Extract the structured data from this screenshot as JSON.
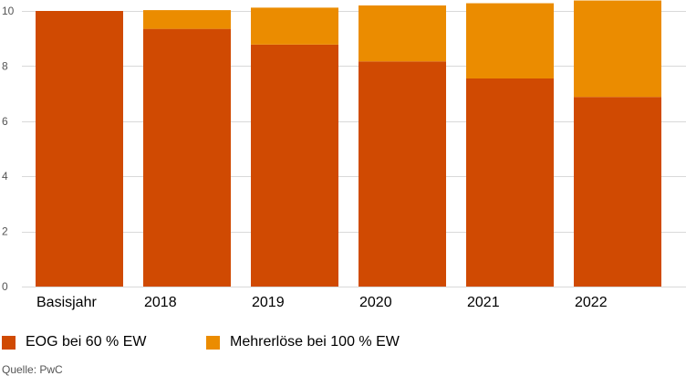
{
  "chart_data": {
    "type": "bar",
    "stacked": true,
    "categories": [
      "Basisjahr",
      "2018",
      "2019",
      "2020",
      "2021",
      "2022"
    ],
    "series": [
      {
        "name": "EOG bei 60 % EW",
        "color": "#d04a02",
        "values": [
          10.0,
          9.35,
          8.78,
          8.17,
          7.55,
          6.88
        ]
      },
      {
        "name": "Mehrerlöse bei 100 % EW",
        "color": "#eb8c00",
        "values": [
          0.0,
          0.68,
          1.34,
          2.03,
          2.73,
          3.5
        ]
      }
    ],
    "y_ticks": [
      0,
      2,
      4,
      6,
      8,
      10
    ],
    "ylim": [
      0,
      10.3
    ],
    "grid": true,
    "legend_position": "bottom-left",
    "source": "Quelle: PwC"
  }
}
